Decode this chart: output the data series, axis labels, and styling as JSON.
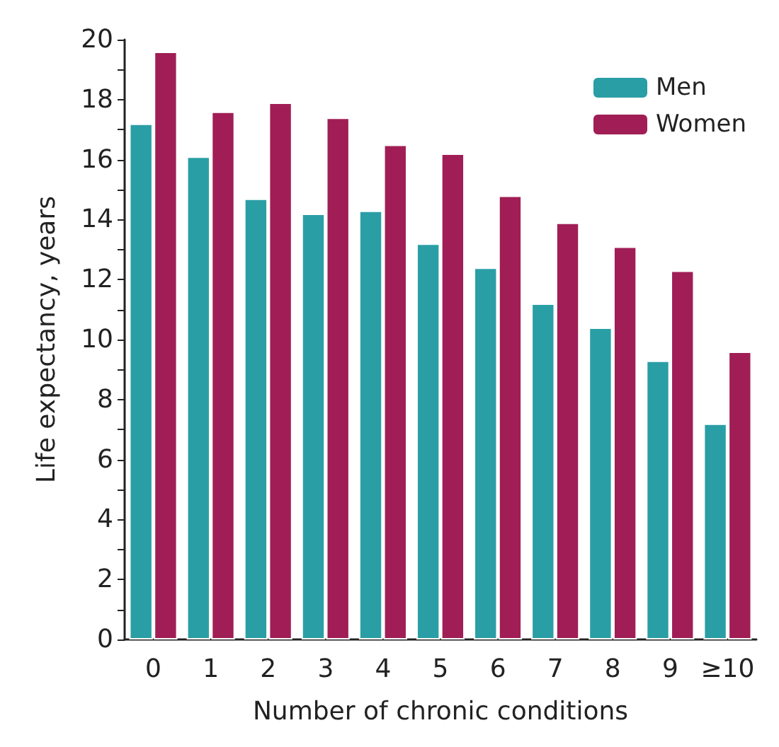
{
  "chart_data": {
    "type": "bar",
    "xlabel": "Number of chronic conditions",
    "ylabel": "Life expectancy, years",
    "categories": [
      "0",
      "1",
      "2",
      "3",
      "4",
      "5",
      "6",
      "7",
      "8",
      "9",
      "≥10"
    ],
    "series": [
      {
        "name": "Men",
        "color": "#2a9ea5",
        "values": [
          17.2,
          16.1,
          14.7,
          14.2,
          14.3,
          13.2,
          12.4,
          11.2,
          10.4,
          9.3,
          7.2
        ]
      },
      {
        "name": "Women",
        "color": "#a01e55",
        "values": [
          19.6,
          17.6,
          17.9,
          17.4,
          16.5,
          16.2,
          14.8,
          13.9,
          13.1,
          12.3,
          9.6
        ]
      }
    ],
    "ylim": [
      0,
      20
    ],
    "yticks": [
      0,
      {
        "value": 1,
        "label": null
      },
      2,
      {
        "value": 3,
        "label": null
      },
      4,
      {
        "value": 5,
        "label": null
      },
      6,
      {
        "value": 7,
        "label": null
      },
      8,
      {
        "value": 9,
        "label": null
      },
      10,
      {
        "value": 11,
        "label": null
      },
      12,
      {
        "value": 13,
        "label": null
      },
      14,
      {
        "value": 15,
        "label": null
      },
      16,
      {
        "value": 17,
        "label": null
      },
      18,
      {
        "value": 19,
        "label": null
      },
      20
    ],
    "grid": false,
    "legend": "top right"
  }
}
